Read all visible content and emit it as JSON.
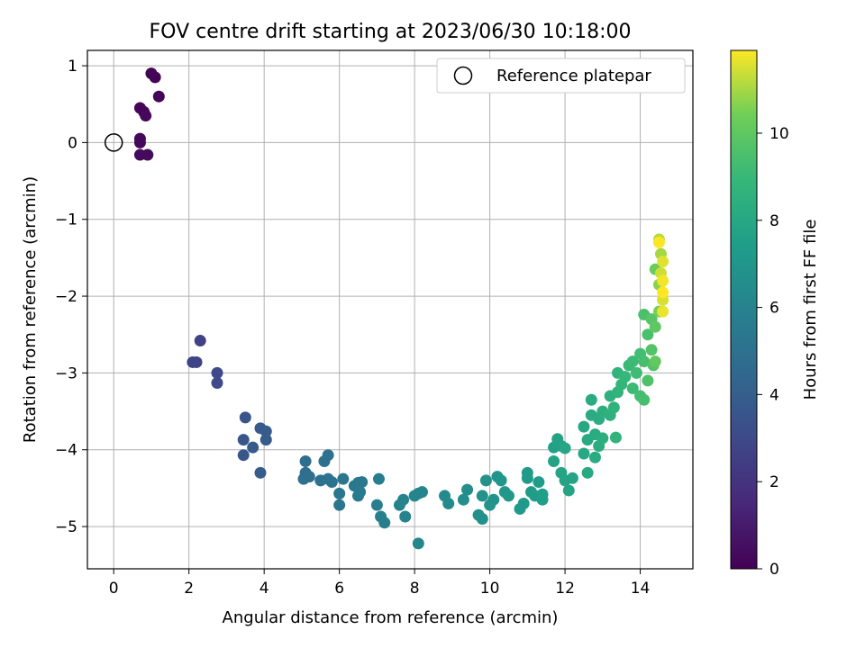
{
  "chart_data": {
    "type": "scatter",
    "title": "FOV centre drift starting at 2023/06/30 10:18:00",
    "xlabel": "Angular distance from reference (arcmin)",
    "ylabel": "Rotation from reference (arcmin)",
    "xlim": [
      -0.7,
      15.4
    ],
    "ylim": [
      -5.55,
      1.2
    ],
    "xticks": [
      "0",
      "2",
      "4",
      "6",
      "8",
      "10",
      "12",
      "14"
    ],
    "yticks": [
      "1",
      "0",
      "−1",
      "−2",
      "−3",
      "−4",
      "−5"
    ],
    "grid": true,
    "legend": {
      "label": "Reference platepar",
      "placement": "top-right"
    },
    "reference_point": {
      "x": 0,
      "y": 0
    },
    "colorbar": {
      "label": "Hours from first FF file",
      "colormap": "viridis",
      "range": [
        0,
        11.9
      ],
      "ticks": [
        "0",
        "2",
        "4",
        "6",
        "8",
        "10"
      ]
    },
    "points": [
      [
        1.0,
        0.9,
        0.1
      ],
      [
        1.1,
        0.85,
        0.1
      ],
      [
        1.2,
        0.6,
        0.15
      ],
      [
        0.7,
        0.45,
        0.2
      ],
      [
        0.8,
        0.4,
        0.2
      ],
      [
        0.85,
        0.35,
        0.25
      ],
      [
        0.7,
        0.05,
        0.3
      ],
      [
        0.7,
        0.0,
        0.3
      ],
      [
        0.7,
        -0.16,
        0.35
      ],
      [
        0.9,
        -0.16,
        0.35
      ],
      [
        2.3,
        -2.58,
        2.6
      ],
      [
        2.1,
        -2.86,
        2.7
      ],
      [
        2.2,
        -2.86,
        2.7
      ],
      [
        2.75,
        -3.0,
        3.0
      ],
      [
        2.75,
        -3.13,
        3.0
      ],
      [
        3.5,
        -3.58,
        3.5
      ],
      [
        3.45,
        -3.87,
        3.6
      ],
      [
        3.45,
        -4.07,
        3.6
      ],
      [
        3.9,
        -3.72,
        3.8
      ],
      [
        3.7,
        -3.97,
        3.8
      ],
      [
        4.05,
        -3.76,
        3.9
      ],
      [
        4.05,
        -3.87,
        3.9
      ],
      [
        3.9,
        -4.3,
        3.9
      ],
      [
        5.1,
        -4.15,
        4.8
      ],
      [
        5.1,
        -4.3,
        4.8
      ],
      [
        5.05,
        -4.38,
        4.9
      ],
      [
        5.2,
        -4.35,
        4.9
      ],
      [
        5.5,
        -4.4,
        5.0
      ],
      [
        5.6,
        -4.15,
        5.0
      ],
      [
        5.7,
        -4.07,
        5.0
      ],
      [
        5.7,
        -4.38,
        5.1
      ],
      [
        5.8,
        -4.42,
        5.1
      ],
      [
        6.0,
        -4.57,
        5.2
      ],
      [
        6.0,
        -4.72,
        5.2
      ],
      [
        6.1,
        -4.38,
        5.2
      ],
      [
        6.4,
        -4.47,
        5.4
      ],
      [
        6.5,
        -4.43,
        5.4
      ],
      [
        6.6,
        -4.42,
        5.4
      ],
      [
        6.5,
        -4.6,
        5.5
      ],
      [
        6.55,
        -4.55,
        5.5
      ],
      [
        7.05,
        -4.38,
        5.7
      ],
      [
        7.0,
        -4.72,
        5.7
      ],
      [
        7.1,
        -4.87,
        5.8
      ],
      [
        7.2,
        -4.95,
        5.8
      ],
      [
        7.6,
        -4.72,
        6.0
      ],
      [
        7.7,
        -4.65,
        6.0
      ],
      [
        7.75,
        -4.87,
        6.0
      ],
      [
        8.0,
        -4.6,
        6.1
      ],
      [
        8.1,
        -4.57,
        6.1
      ],
      [
        8.2,
        -4.55,
        6.1
      ],
      [
        8.1,
        -5.22,
        6.2
      ],
      [
        8.8,
        -4.6,
        6.4
      ],
      [
        8.9,
        -4.7,
        6.4
      ],
      [
        9.3,
        -4.65,
        6.6
      ],
      [
        9.4,
        -4.52,
        6.6
      ],
      [
        9.7,
        -4.85,
        6.7
      ],
      [
        9.8,
        -4.9,
        6.7
      ],
      [
        9.8,
        -4.6,
        6.8
      ],
      [
        9.9,
        -4.4,
        6.8
      ],
      [
        10.0,
        -4.72,
        6.9
      ],
      [
        10.1,
        -4.65,
        6.9
      ],
      [
        10.2,
        -4.35,
        6.9
      ],
      [
        10.3,
        -4.4,
        7.0
      ],
      [
        10.4,
        -4.55,
        7.0
      ],
      [
        10.5,
        -4.6,
        7.1
      ],
      [
        10.8,
        -4.77,
        7.2
      ],
      [
        10.9,
        -4.7,
        7.2
      ],
      [
        11.0,
        -4.3,
        7.3
      ],
      [
        11.0,
        -4.37,
        7.3
      ],
      [
        11.1,
        -4.55,
        7.3
      ],
      [
        11.2,
        -4.6,
        7.4
      ],
      [
        11.3,
        -4.42,
        7.4
      ],
      [
        11.4,
        -4.65,
        7.5
      ],
      [
        11.4,
        -4.58,
        7.5
      ],
      [
        11.7,
        -3.97,
        7.6
      ],
      [
        11.8,
        -3.86,
        7.7
      ],
      [
        11.9,
        -3.95,
        7.7
      ],
      [
        11.7,
        -4.15,
        7.7
      ],
      [
        11.9,
        -4.3,
        7.8
      ],
      [
        12.0,
        -4.4,
        7.8
      ],
      [
        12.1,
        -4.53,
        7.8
      ],
      [
        12.2,
        -4.37,
        7.8
      ],
      [
        12.0,
        -3.98,
        7.9
      ],
      [
        12.5,
        -3.7,
        8.0
      ],
      [
        12.5,
        -4.05,
        8.0
      ],
      [
        12.6,
        -3.87,
        8.1
      ],
      [
        12.6,
        -4.3,
        8.1
      ],
      [
        12.7,
        -3.55,
        8.2
      ],
      [
        12.7,
        -3.35,
        8.2
      ],
      [
        12.8,
        -3.8,
        8.2
      ],
      [
        12.8,
        -4.1,
        8.2
      ],
      [
        12.9,
        -3.6,
        8.3
      ],
      [
        12.9,
        -3.95,
        8.3
      ],
      [
        13.0,
        -3.5,
        8.4
      ],
      [
        13.0,
        -3.85,
        8.4
      ],
      [
        13.2,
        -3.3,
        8.5
      ],
      [
        13.2,
        -3.55,
        8.5
      ],
      [
        13.3,
        -3.45,
        8.6
      ],
      [
        13.4,
        -3.0,
        8.7
      ],
      [
        13.4,
        -3.25,
        8.7
      ],
      [
        13.35,
        -3.84,
        8.7
      ],
      [
        13.5,
        -3.15,
        8.8
      ],
      [
        13.6,
        -3.05,
        8.9
      ],
      [
        13.7,
        -2.9,
        9.0
      ],
      [
        13.8,
        -2.85,
        9.1
      ],
      [
        13.8,
        -3.2,
        9.1
      ],
      [
        13.9,
        -3.0,
        9.2
      ],
      [
        14.0,
        -2.75,
        9.3
      ],
      [
        14.0,
        -3.3,
        9.3
      ],
      [
        14.1,
        -2.85,
        9.4
      ],
      [
        14.1,
        -3.35,
        9.4
      ],
      [
        14.1,
        -2.24,
        9.5
      ],
      [
        14.2,
        -2.5,
        9.5
      ],
      [
        14.2,
        -3.1,
        9.6
      ],
      [
        14.3,
        -2.7,
        9.7
      ],
      [
        14.35,
        -2.9,
        9.7
      ],
      [
        14.3,
        -2.3,
        9.8
      ],
      [
        14.4,
        -2.4,
        10.0
      ],
      [
        14.4,
        -2.85,
        10.1
      ],
      [
        14.4,
        -1.65,
        10.3
      ],
      [
        14.5,
        -2.2,
        10.5
      ],
      [
        14.5,
        -1.85,
        10.7
      ],
      [
        14.55,
        -1.45,
        11.0
      ],
      [
        14.5,
        -1.26,
        11.2
      ],
      [
        14.55,
        -1.7,
        11.4
      ],
      [
        14.6,
        -2.05,
        11.5
      ],
      [
        14.6,
        -1.55,
        11.6
      ],
      [
        14.6,
        -2.2,
        11.7
      ],
      [
        14.6,
        -1.8,
        11.8
      ],
      [
        14.5,
        -1.3,
        11.9
      ],
      [
        14.6,
        -1.95,
        11.9
      ]
    ]
  }
}
